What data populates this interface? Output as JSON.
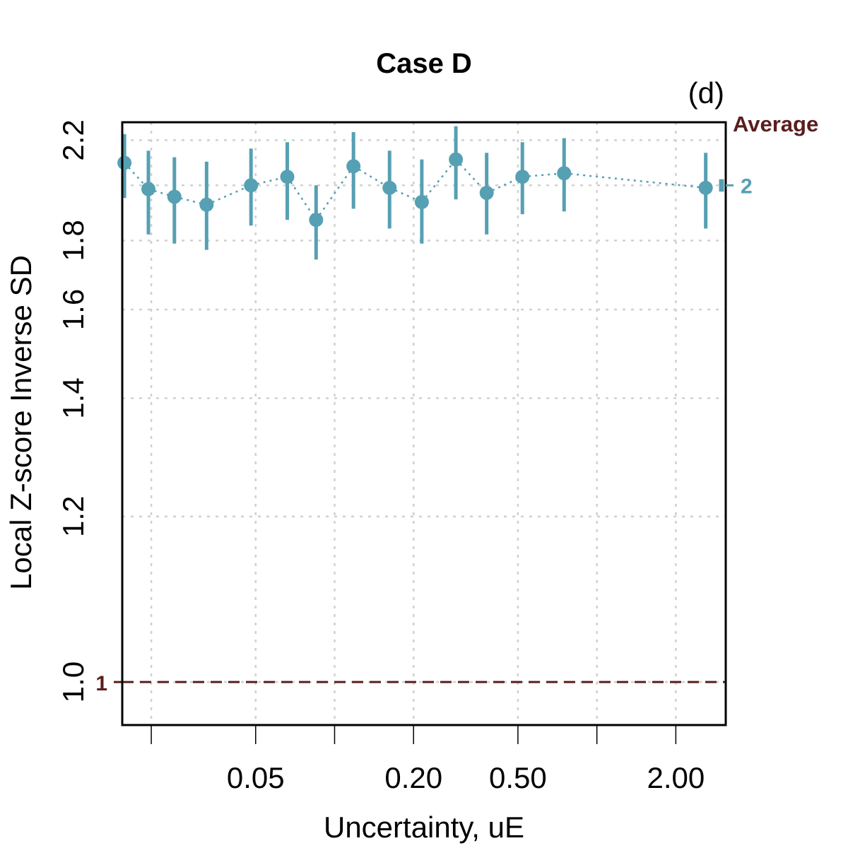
{
  "chart_data": {
    "type": "scatter",
    "title": "Case D",
    "panel_label": "(d)",
    "xlabel": "Uncertainty, uE",
    "ylabel": "Local Z-score Inverse SD",
    "x_scale": "log",
    "y_scale": "inverse",
    "xlim": [
      0.0155,
      3.1
    ],
    "ylim": [
      0.9585,
      2.291
    ],
    "x_ticks": [
      0.02,
      0.05,
      0.1,
      0.2,
      0.5,
      1.0,
      2.0
    ],
    "x_tick_labels": [
      "",
      "0.05",
      "",
      "0.20",
      "0.50",
      "",
      "2.00"
    ],
    "y_ticks": [
      1.0,
      1.2,
      1.4,
      1.6,
      1.8,
      2.0,
      2.2
    ],
    "y_tick_labels": [
      "1.0",
      "1.2",
      "1.4",
      "1.6",
      "1.8",
      "",
      "2.2"
    ],
    "grid": true,
    "series": [
      {
        "color": "#56a0b3",
        "points": [
          {
            "x": 0.0158,
            "y": 2.095,
            "lo": 1.95,
            "hi": 2.23
          },
          {
            "x": 0.0195,
            "y": 1.985,
            "lo": 1.82,
            "hi": 2.15
          },
          {
            "x": 0.0245,
            "y": 1.955,
            "lo": 1.79,
            "hi": 2.12
          },
          {
            "x": 0.0325,
            "y": 1.925,
            "lo": 1.77,
            "hi": 2.1
          },
          {
            "x": 0.048,
            "y": 2.0,
            "lo": 1.85,
            "hi": 2.16
          },
          {
            "x": 0.066,
            "y": 2.035,
            "lo": 1.87,
            "hi": 2.19
          },
          {
            "x": 0.085,
            "y": 1.87,
            "lo": 1.74,
            "hi": 2.0
          },
          {
            "x": 0.118,
            "y": 2.08,
            "lo": 1.91,
            "hi": 2.24
          },
          {
            "x": 0.162,
            "y": 1.99,
            "lo": 1.84,
            "hi": 2.15
          },
          {
            "x": 0.215,
            "y": 1.935,
            "lo": 1.79,
            "hi": 2.11
          },
          {
            "x": 0.29,
            "y": 2.11,
            "lo": 1.945,
            "hi": 2.27
          },
          {
            "x": 0.38,
            "y": 1.97,
            "lo": 1.82,
            "hi": 2.14
          },
          {
            "x": 0.52,
            "y": 2.035,
            "lo": 1.89,
            "hi": 2.19
          },
          {
            "x": 0.75,
            "y": 2.05,
            "lo": 1.9,
            "hi": 2.21
          },
          {
            "x": 2.6,
            "y": 1.99,
            "lo": 1.84,
            "hi": 2.14
          }
        ]
      }
    ],
    "reference_line": {
      "y": 1.0,
      "style": "dashed",
      "color": "#5a1d1d",
      "label": "1"
    },
    "average": {
      "label": "Average",
      "value_label": "2",
      "value": 2.0,
      "lo": 1.975,
      "hi": 2.025,
      "color": "#56a0b3",
      "label_color": "#5a1d1d"
    }
  }
}
